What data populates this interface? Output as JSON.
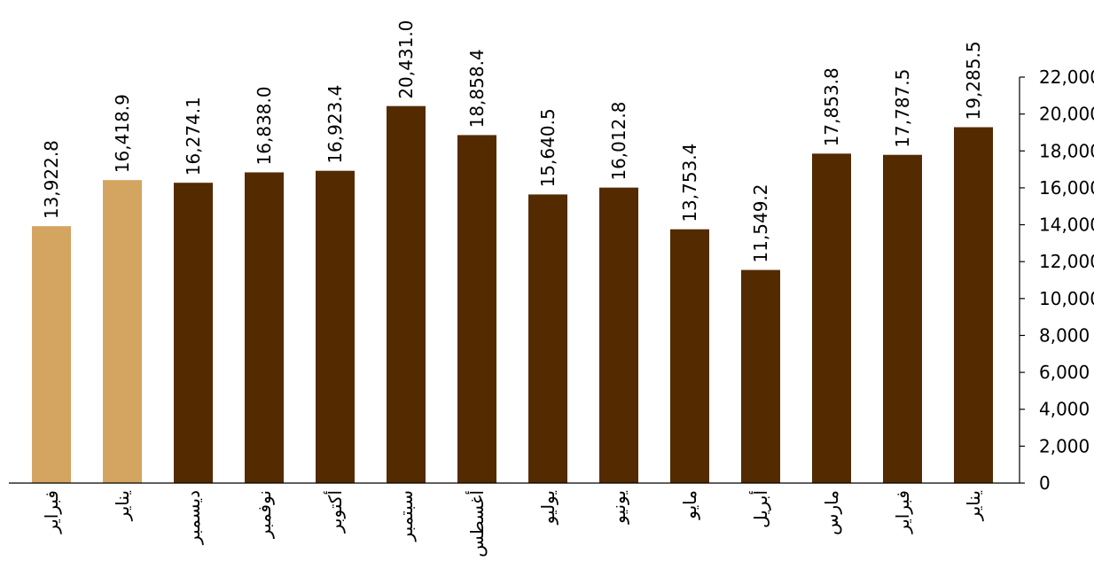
{
  "chart_data": {
    "type": "bar",
    "title": "",
    "xlabel": "",
    "ylabel": "",
    "ylim": [
      0,
      22000
    ],
    "yticks": [
      0,
      2000,
      4000,
      6000,
      8000,
      10000,
      12000,
      14000,
      16000,
      18000,
      20000,
      22000
    ],
    "ytick_labels": [
      "0",
      "2,000",
      "4,000",
      "6,000",
      "8,000",
      "10,000",
      "12,000",
      "14,000",
      "16,000",
      "18,000",
      "20,000",
      "22,000"
    ],
    "y_axis_side": "right",
    "x_direction": "right-to-left",
    "grid": false,
    "categories": [
      "يناير",
      "فبراير",
      "مارس",
      "أبريل",
      "مايو",
      "يونيو",
      "يوليو",
      "أغسطس",
      "سبتمبر",
      "أكتوبر",
      "نوفمبر",
      "ديسمبر",
      "يناير",
      "فبراير"
    ],
    "values": [
      19285.5,
      17787.5,
      17853.8,
      11549.2,
      13753.4,
      16012.8,
      15640.5,
      18858.4,
      20431.0,
      16923.4,
      16838.0,
      16274.1,
      16418.9,
      13922.8
    ],
    "value_labels": [
      "19,285.5",
      "17,787.5",
      "17,853.8",
      "11,549.2",
      "13,753.4",
      "16,012.8",
      "15,640.5",
      "18,858.4",
      "20,431.0",
      "16,923.4",
      "16,838.0",
      "16,274.1",
      "16,418.9",
      "13,922.8"
    ],
    "bar_colors": [
      "#542a00",
      "#542a00",
      "#542a00",
      "#542a00",
      "#542a00",
      "#542a00",
      "#542a00",
      "#542a00",
      "#542a00",
      "#542a00",
      "#542a00",
      "#542a00",
      "#d4a461",
      "#d4a461"
    ]
  }
}
